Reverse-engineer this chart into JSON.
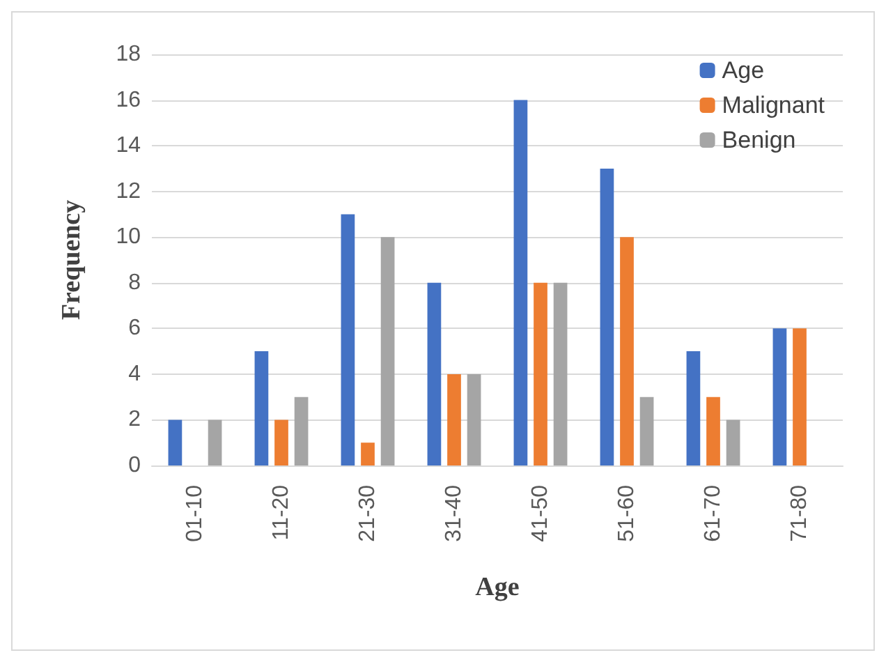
{
  "chart_data": {
    "type": "bar",
    "xlabel": "Age",
    "ylabel": "Frequency",
    "categories": [
      "01-10",
      "11-20",
      "21-30",
      "31-40",
      "41-50",
      "51-60",
      "61-70",
      "71-80"
    ],
    "series": [
      {
        "name": "Age",
        "color": "#4472c4",
        "values": [
          2,
          5,
          11,
          8,
          16,
          13,
          5,
          6
        ]
      },
      {
        "name": "Malignant",
        "color": "#ed7d31",
        "values": [
          0,
          2,
          1,
          4,
          8,
          10,
          3,
          6
        ]
      },
      {
        "name": "Benign",
        "color": "#a5a5a5",
        "values": [
          2,
          3,
          10,
          4,
          8,
          3,
          2,
          0
        ]
      }
    ],
    "ylim": [
      0,
      18
    ],
    "yticks": [
      0,
      2,
      4,
      6,
      8,
      10,
      12,
      14,
      16,
      18
    ],
    "grid": "y",
    "legend": "top right"
  }
}
